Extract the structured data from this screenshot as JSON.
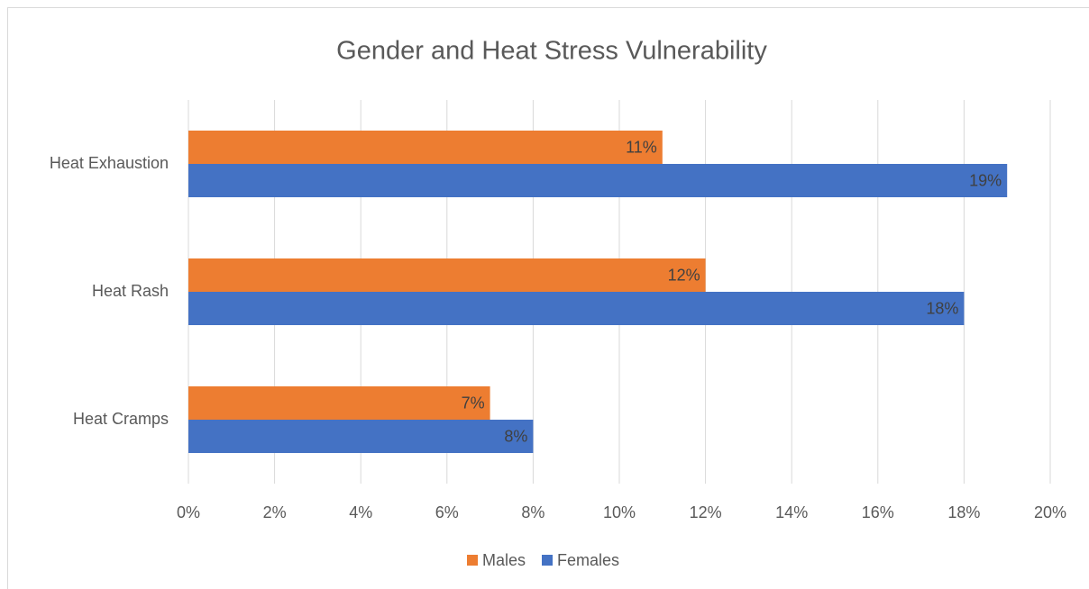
{
  "chart_data": {
    "type": "bar",
    "orientation": "horizontal",
    "title": "Gender and  Heat Stress Vulnerability",
    "categories": [
      "Heat Exhaustion",
      "Heat Rash",
      "Heat Cramps"
    ],
    "series": [
      {
        "name": "Males",
        "color": "#ed7d31",
        "values": [
          11,
          12,
          7
        ],
        "value_labels": [
          "11%",
          "12%",
          "7%"
        ]
      },
      {
        "name": "Females",
        "color": "#4472c4",
        "values": [
          19,
          18,
          8
        ],
        "value_labels": [
          "19%",
          "18%",
          "8%"
        ]
      }
    ],
    "xlim": [
      0,
      20
    ],
    "xticks": [
      {
        "value": 0,
        "label": "0%"
      },
      {
        "value": 2,
        "label": "2%"
      },
      {
        "value": 4,
        "label": "4%"
      },
      {
        "value": 6,
        "label": "6%"
      },
      {
        "value": 8,
        "label": "8%"
      },
      {
        "value": 10,
        "label": "10%"
      },
      {
        "value": 12,
        "label": "12%"
      },
      {
        "value": 14,
        "label": "14%"
      },
      {
        "value": 16,
        "label": "16%"
      },
      {
        "value": 18,
        "label": "18%"
      },
      {
        "value": 20,
        "label": "20%"
      }
    ],
    "grid": true,
    "legend": "bottom"
  }
}
